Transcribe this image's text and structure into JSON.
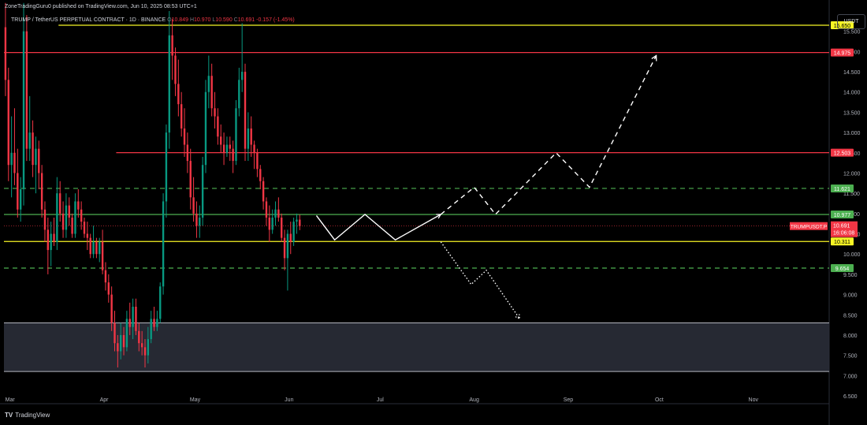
{
  "header": {
    "published": "ZoneTradingGuru0 published on TradingView.com, Jun 10, 2025 08:53 UTC+1",
    "symbol": "TRUMP / TetherUS PERPETUAL CONTRACT · 1D · BINANCE",
    "ohlc": {
      "o_label": "O",
      "o": "10.849",
      "h_label": "H",
      "h": "10.970",
      "l_label": "L",
      "l": "10.590",
      "c_label": "C",
      "c": "10.691",
      "change": "-0.157 (-1.45%)"
    }
  },
  "currency": "USDT",
  "logo_text": "TradingView",
  "chart_data": {
    "type": "candlestick",
    "y_axis": {
      "min": 6.5,
      "max": 16.0,
      "ticks": [
        "6.500",
        "7.000",
        "7.500",
        "8.000",
        "8.500",
        "9.000",
        "9.500",
        "10.000",
        "10.500",
        "11.000",
        "11.500",
        "12.000",
        "12.500",
        "13.000",
        "13.500",
        "14.000",
        "14.500",
        "15.000",
        "15.500"
      ]
    },
    "x_axis": {
      "start": "2025-02-27",
      "end": "2025-11-26",
      "ticks": [
        {
          "label": "Mar",
          "date": "2025-03-01"
        },
        {
          "label": "Apr",
          "date": "2025-04-01"
        },
        {
          "label": "May",
          "date": "2025-05-01"
        },
        {
          "label": "Jun",
          "date": "2025-06-01"
        },
        {
          "label": "Jul",
          "date": "2025-07-01"
        },
        {
          "label": "Aug",
          "date": "2025-08-01"
        },
        {
          "label": "Sep",
          "date": "2025-09-01"
        },
        {
          "label": "Oct",
          "date": "2025-10-01"
        },
        {
          "label": "Nov",
          "date": "2025-11-01"
        }
      ]
    },
    "colors": {
      "up": "#089981",
      "down": "#f23645",
      "yellow": "#f7f525",
      "red": "#f23645",
      "green": "#4caf50",
      "zone": "#2a2e39",
      "white": "#ffffff"
    },
    "candles": [
      [
        15.6,
        16.2,
        13.9,
        14.3
      ],
      [
        14.3,
        14.6,
        11.8,
        12.2
      ],
      [
        12.2,
        13.4,
        11.4,
        12.5
      ],
      [
        12.5,
        13.6,
        11.7,
        12.0
      ],
      [
        12.0,
        12.6,
        10.9,
        11.1
      ],
      [
        11.1,
        11.9,
        10.8,
        11.6
      ],
      [
        11.6,
        16.2,
        11.2,
        15.5
      ],
      [
        15.5,
        15.9,
        12.3,
        12.6
      ],
      [
        12.6,
        13.9,
        12.3,
        13.0
      ],
      [
        13.0,
        13.3,
        11.9,
        12.2
      ],
      [
        12.2,
        12.9,
        11.5,
        12.6
      ],
      [
        12.6,
        12.8,
        11.6,
        12.0
      ],
      [
        12.0,
        12.2,
        10.9,
        11.1
      ],
      [
        11.1,
        11.3,
        10.3,
        10.6
      ],
      [
        10.6,
        10.9,
        9.5,
        10.1
      ],
      [
        10.1,
        10.8,
        9.7,
        10.5
      ],
      [
        10.5,
        10.9,
        10.2,
        10.3
      ],
      [
        10.3,
        11.9,
        10.1,
        11.5
      ],
      [
        11.5,
        11.8,
        10.8,
        11.0
      ],
      [
        11.0,
        11.3,
        10.4,
        10.6
      ],
      [
        10.6,
        11.5,
        10.4,
        11.2
      ],
      [
        11.2,
        11.4,
        10.7,
        10.9
      ],
      [
        10.9,
        11.0,
        10.4,
        10.5
      ],
      [
        10.5,
        11.5,
        10.4,
        11.3
      ],
      [
        11.3,
        11.6,
        10.9,
        11.1
      ],
      [
        11.1,
        11.3,
        10.6,
        10.8
      ],
      [
        10.8,
        10.9,
        10.4,
        10.5
      ],
      [
        10.5,
        10.8,
        10.1,
        10.4
      ],
      [
        10.4,
        10.5,
        9.9,
        10.0
      ],
      [
        10.0,
        10.7,
        9.9,
        10.3
      ],
      [
        10.3,
        10.4,
        9.9,
        10.0
      ],
      [
        10.0,
        10.4,
        9.8,
        10.3
      ],
      [
        10.3,
        10.6,
        9.5,
        9.6
      ],
      [
        9.6,
        9.8,
        9.1,
        9.3
      ],
      [
        9.3,
        9.5,
        8.8,
        9.0
      ],
      [
        9.0,
        9.2,
        8.1,
        8.3
      ],
      [
        8.3,
        8.6,
        7.6,
        7.8
      ],
      [
        7.8,
        8.0,
        7.2,
        7.6
      ],
      [
        7.6,
        8.3,
        7.4,
        8.0
      ],
      [
        8.0,
        8.2,
        7.5,
        7.7
      ],
      [
        7.7,
        8.6,
        7.6,
        8.4
      ],
      [
        8.4,
        8.8,
        8.0,
        8.2
      ],
      [
        8.2,
        8.9,
        7.9,
        8.7
      ],
      [
        8.7,
        8.9,
        8.0,
        8.1
      ],
      [
        8.1,
        8.3,
        7.6,
        7.8
      ],
      [
        7.8,
        8.1,
        7.5,
        7.7
      ],
      [
        7.7,
        7.9,
        7.2,
        7.5
      ],
      [
        7.5,
        8.2,
        7.3,
        7.9
      ],
      [
        7.9,
        8.6,
        7.8,
        8.4
      ],
      [
        8.4,
        8.7,
        8.1,
        8.2
      ],
      [
        8.2,
        8.6,
        8.1,
        8.4
      ],
      [
        8.4,
        9.3,
        8.3,
        9.2
      ],
      [
        9.2,
        11.5,
        9.0,
        11.3
      ],
      [
        11.3,
        13.2,
        10.9,
        13.0
      ],
      [
        13.0,
        16.0,
        12.6,
        15.4
      ],
      [
        15.4,
        15.8,
        14.3,
        14.9
      ],
      [
        14.9,
        15.1,
        13.9,
        14.2
      ],
      [
        14.2,
        14.8,
        13.4,
        13.7
      ],
      [
        13.7,
        14.0,
        12.9,
        13.1
      ],
      [
        13.1,
        13.6,
        12.4,
        12.7
      ],
      [
        12.7,
        13.0,
        12.0,
        12.3
      ],
      [
        12.3,
        12.6,
        11.1,
        11.4
      ],
      [
        11.4,
        11.9,
        10.8,
        11.0
      ],
      [
        11.0,
        11.3,
        10.4,
        10.7
      ],
      [
        10.7,
        11.2,
        10.4,
        10.9
      ],
      [
        10.9,
        12.4,
        10.7,
        12.2
      ],
      [
        12.2,
        14.3,
        12.0,
        14.0
      ],
      [
        14.0,
        14.9,
        13.6,
        14.4
      ],
      [
        14.4,
        14.7,
        13.4,
        13.6
      ],
      [
        13.6,
        14.0,
        13.1,
        13.4
      ],
      [
        13.4,
        13.6,
        12.7,
        12.9
      ],
      [
        12.9,
        13.2,
        12.5,
        12.7
      ],
      [
        12.7,
        13.0,
        12.2,
        12.5
      ],
      [
        12.5,
        12.9,
        12.4,
        12.7
      ],
      [
        12.7,
        12.9,
        12.3,
        12.6
      ],
      [
        12.6,
        12.8,
        12.0,
        12.3
      ],
      [
        12.3,
        13.8,
        12.2,
        13.6
      ],
      [
        13.6,
        14.6,
        13.4,
        14.3
      ],
      [
        14.3,
        15.7,
        14.0,
        14.5
      ],
      [
        14.5,
        14.7,
        12.3,
        12.6
      ],
      [
        12.6,
        13.5,
        12.3,
        13.1
      ],
      [
        13.1,
        13.4,
        12.4,
        12.7
      ],
      [
        12.7,
        12.8,
        12.1,
        12.5
      ],
      [
        12.5,
        12.6,
        11.9,
        12.1
      ],
      [
        12.1,
        12.2,
        11.6,
        11.8
      ],
      [
        11.8,
        11.9,
        11.1,
        11.3
      ],
      [
        11.3,
        11.4,
        10.7,
        10.9
      ],
      [
        10.9,
        11.2,
        10.3,
        10.6
      ],
      [
        10.6,
        11.1,
        10.5,
        10.9
      ],
      [
        10.9,
        11.3,
        10.7,
        11.1
      ],
      [
        11.1,
        11.4,
        10.8,
        10.9
      ],
      [
        10.9,
        11.0,
        10.3,
        10.4
      ],
      [
        10.4,
        10.6,
        9.6,
        9.9
      ],
      [
        9.9,
        10.6,
        9.1,
        10.5
      ],
      [
        10.5,
        10.8,
        10.0,
        10.3
      ],
      [
        10.3,
        10.9,
        10.2,
        10.8
      ],
      [
        10.8,
        11.0,
        10.5,
        10.85
      ],
      [
        10.85,
        10.97,
        10.59,
        10.691
      ]
    ],
    "levels": [
      {
        "price": 15.65,
        "label": "15.650",
        "color": "yellow",
        "style": "solid",
        "from": "2025-03-17"
      },
      {
        "price": 14.975,
        "label": "14.975",
        "color": "red",
        "style": "solid",
        "from": "2025-02-27"
      },
      {
        "price": 12.503,
        "label": "12.503",
        "color": "red",
        "style": "solid",
        "from": "2025-04-05"
      },
      {
        "price": 11.621,
        "label": "11.621",
        "color": "green",
        "style": "dashed",
        "from": "2025-02-27"
      },
      {
        "price": 10.977,
        "label": "10.977",
        "color": "green",
        "style": "solid",
        "from": "2025-02-27"
      },
      {
        "price": 10.311,
        "label": "10.311",
        "color": "yellow",
        "style": "solid",
        "from": "2025-02-27"
      },
      {
        "price": 9.654,
        "label": "9.654",
        "color": "green",
        "style": "dashed",
        "from": "2025-02-27"
      }
    ],
    "demand_zone": {
      "top": 8.3,
      "bottom": 7.1
    },
    "current_price": {
      "symbol": "TRUMPUSDT.P",
      "price": "10.691",
      "countdown": "16:06:08",
      "value": 10.691
    },
    "projections": [
      {
        "style": "solid",
        "arrow": true,
        "points": [
          [
            "2025-06-10",
            10.95
          ],
          [
            "2025-06-16",
            10.35
          ],
          [
            "2025-06-26",
            10.98
          ],
          [
            "2025-07-06",
            10.35
          ],
          [
            "2025-07-21",
            10.98
          ]
        ]
      },
      {
        "style": "dashed",
        "arrow": false,
        "points": [
          [
            "2025-07-21",
            10.98
          ],
          [
            "2025-08-01",
            11.65
          ],
          [
            "2025-08-08",
            10.98
          ],
          [
            "2025-08-28",
            12.5
          ],
          [
            "2025-09-08",
            11.65
          ],
          [
            "2025-09-30",
            14.9
          ]
        ]
      },
      {
        "style": "dotted",
        "arrow": true,
        "points": [
          [
            "2025-07-21",
            10.3
          ],
          [
            "2025-07-31",
            9.25
          ],
          [
            "2025-08-05",
            9.6
          ],
          [
            "2025-08-16",
            8.4
          ]
        ]
      }
    ]
  }
}
